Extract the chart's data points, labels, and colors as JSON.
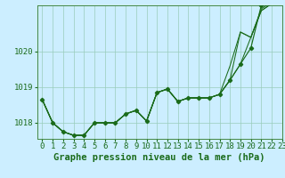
{
  "title": "Graphe pression niveau de la mer (hPa)",
  "background_color": "#cceeff",
  "grid_color": "#99ccbb",
  "line_color": "#1a6b1a",
  "xlim": [
    -0.5,
    23
  ],
  "ylim": [
    1017.55,
    1021.3
  ],
  "yticks": [
    1018,
    1019,
    1020
  ],
  "xticks": [
    0,
    1,
    2,
    3,
    4,
    5,
    6,
    7,
    8,
    9,
    10,
    11,
    12,
    13,
    14,
    15,
    16,
    17,
    18,
    19,
    20,
    21,
    22,
    23
  ],
  "y_main": [
    1018.65,
    1018.0,
    1017.75,
    1017.65,
    1017.65,
    1018.0,
    1018.0,
    1018.0,
    1018.25,
    1018.35,
    1018.05,
    1018.85,
    1018.95,
    1018.6,
    1018.7,
    1018.7,
    1018.7,
    1018.8,
    1019.2,
    1019.65,
    1020.1,
    1021.3,
    1021.4,
    1021.55
  ],
  "y_s1": [
    1018.65,
    1018.0,
    1017.75,
    1017.65,
    1017.65,
    1018.0,
    1018.0,
    1018.0,
    1018.25,
    1018.35,
    1018.05,
    1018.85,
    1018.95,
    1018.6,
    1018.7,
    1018.7,
    1018.7,
    1018.8,
    1019.2,
    1019.65,
    1020.4,
    1021.2,
    1021.4,
    1021.55
  ],
  "y_s2": [
    1018.65,
    1018.0,
    1017.75,
    1017.65,
    1017.65,
    1018.0,
    1018.0,
    1018.0,
    1018.25,
    1018.35,
    1018.05,
    1018.85,
    1018.95,
    1018.6,
    1018.7,
    1018.7,
    1018.7,
    1018.8,
    1019.2,
    1020.55,
    1020.4,
    1021.15,
    1021.35,
    1021.55
  ],
  "y_s3": [
    1018.65,
    1018.0,
    1017.75,
    1017.65,
    1017.65,
    1018.0,
    1018.0,
    1018.0,
    1018.25,
    1018.35,
    1018.05,
    1018.85,
    1018.95,
    1018.6,
    1018.7,
    1018.7,
    1018.7,
    1018.8,
    1019.6,
    1020.55,
    1020.4,
    1021.15,
    1021.35,
    1021.55
  ],
  "xlabel_fontsize": 7.5,
  "tick_fontsize": 6.5
}
